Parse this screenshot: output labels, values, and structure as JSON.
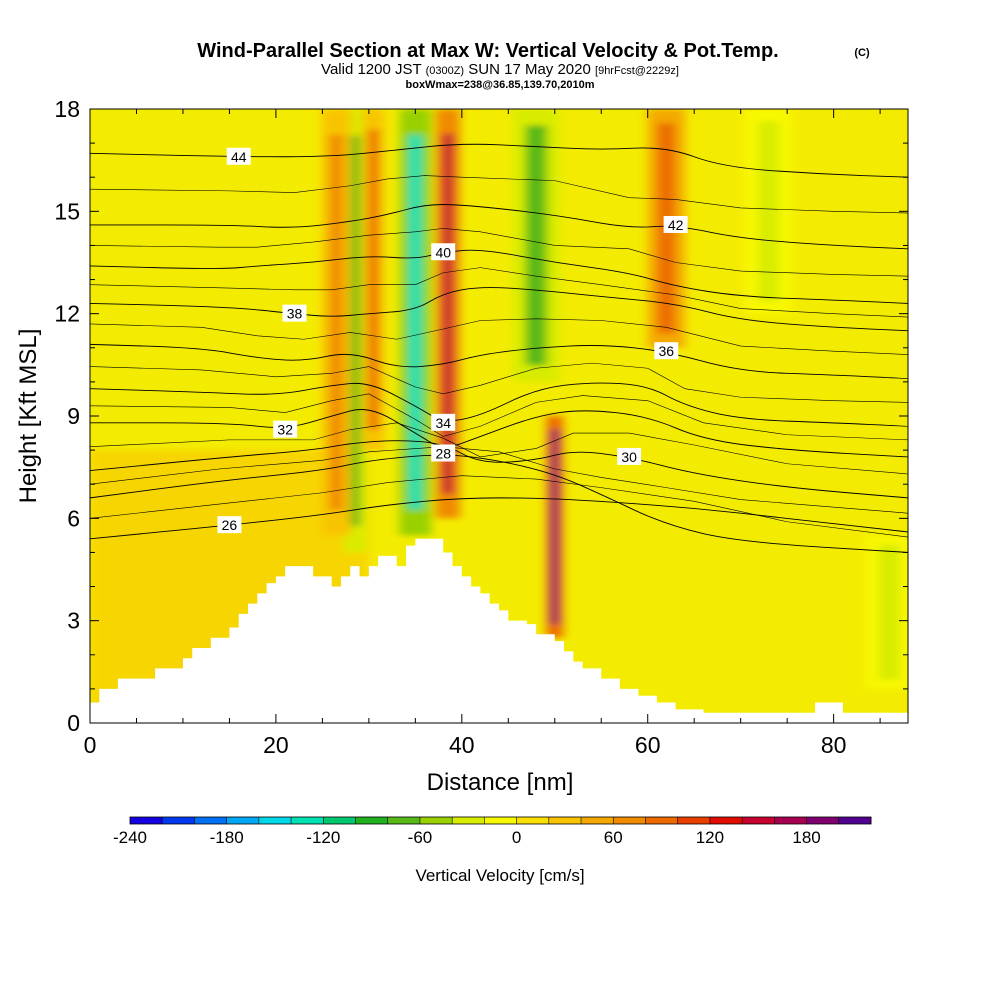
{
  "chart_data": {
    "type": "heatmap",
    "title": "Wind-Parallel Section at Max W: Vertical Velocity & Pot.Temp.",
    "title_mark": "(C)",
    "subtitle": {
      "prefix": "Valid 1200 JST",
      "utc": "(0300Z)",
      "date": "SUN 17 May 2020",
      "forecast": "[9hrFcst@2229z]"
    },
    "subtitle2": "boxWmax=238@36.85,139.70,2010m",
    "xlabel": "Distance [nm]",
    "ylabel": "Height [Kft MSL]",
    "xlim": [
      0,
      88
    ],
    "ylim": [
      0,
      18
    ],
    "x_ticks": [
      "0",
      "20",
      "40",
      "60",
      "80"
    ],
    "y_ticks": [
      "0",
      "3",
      "6",
      "9",
      "12",
      "15",
      "18"
    ],
    "colorbar": {
      "label": "Vertical Velocity [cm/s]",
      "ticks": [
        "-240",
        "-180",
        "-120",
        "-60",
        "0",
        "60",
        "120",
        "180"
      ],
      "range": [
        -240,
        220
      ],
      "colors": [
        "#1400e0",
        "#0038f0",
        "#0070f5",
        "#00a8f5",
        "#00d8ea",
        "#00e0b0",
        "#00c870",
        "#20b020",
        "#58b818",
        "#98d000",
        "#d8ec00",
        "#f8f800",
        "#fae000",
        "#f8c400",
        "#f4a800",
        "#f08a00",
        "#ec6a00",
        "#e83e00",
        "#e00c00",
        "#c80030",
        "#a80050",
        "#800070",
        "#500090"
      ]
    },
    "updraft_bands": [
      {
        "x": 26.5,
        "width": 1.6,
        "ymin": 5.5,
        "ymax": 18,
        "w": 70
      },
      {
        "x": 30.5,
        "width": 1.2,
        "ymin": 8,
        "ymax": 18,
        "w": 80
      },
      {
        "x": 38.5,
        "width": 1.3,
        "ymin": 6,
        "ymax": 18,
        "w": 140
      },
      {
        "x": 50,
        "width": 0.9,
        "ymin": 2.5,
        "ymax": 9,
        "w": 190
      },
      {
        "x": 62,
        "width": 2,
        "ymin": 11,
        "ymax": 18,
        "w": 90
      }
    ],
    "downdraft_bands": [
      {
        "x": 28.5,
        "width": 1.2,
        "ymin": 5,
        "ymax": 18,
        "w": -70
      },
      {
        "x": 35,
        "width": 1.7,
        "ymin": 5.5,
        "ymax": 18,
        "w": -130
      },
      {
        "x": 48,
        "width": 2.5,
        "ymin": 10,
        "ymax": 18,
        "w": -70
      },
      {
        "x": 73,
        "width": 2.5,
        "ymin": 12,
        "ymax": 18,
        "w": -40
      },
      {
        "x": 86,
        "width": 2.5,
        "ymin": 1,
        "ymax": 5.5,
        "w": -40
      }
    ],
    "theta_contours": [
      {
        "value": 26,
        "label": "26",
        "points": [
          [
            0,
            5.4
          ],
          [
            15,
            5.8
          ],
          [
            25,
            6.1
          ],
          [
            32,
            6.4
          ],
          [
            40,
            6.6
          ],
          [
            48,
            6.6
          ],
          [
            55,
            6.5
          ],
          [
            65,
            6.3
          ],
          [
            75,
            6.0
          ],
          [
            88,
            5.6
          ]
        ]
      },
      {
        "value": 28,
        "label": "28",
        "points": [
          [
            0,
            6.6
          ],
          [
            14,
            7.1
          ],
          [
            25,
            7.4
          ],
          [
            30,
            7.7
          ],
          [
            38,
            7.9
          ],
          [
            44,
            7.7
          ],
          [
            50,
            7.3
          ],
          [
            55,
            6.7
          ],
          [
            62,
            5.8
          ],
          [
            70,
            5.3
          ],
          [
            88,
            5.0
          ]
        ]
      },
      {
        "value": 30,
        "label": "30",
        "points": [
          [
            0,
            7.4
          ],
          [
            15,
            7.8
          ],
          [
            24,
            8.0
          ],
          [
            28,
            8.2
          ],
          [
            33,
            8.3
          ],
          [
            38,
            8.2
          ],
          [
            42,
            7.6
          ],
          [
            48,
            7.7
          ],
          [
            52,
            8.0
          ],
          [
            58,
            7.8
          ],
          [
            65,
            7.3
          ],
          [
            75,
            6.9
          ],
          [
            88,
            6.6
          ]
        ]
      },
      {
        "value": 32,
        "label": "32",
        "points": [
          [
            0,
            8.8
          ],
          [
            15,
            8.8
          ],
          [
            21,
            8.6
          ],
          [
            26,
            9.0
          ],
          [
            30,
            9.3
          ],
          [
            35,
            8.5
          ],
          [
            38,
            8.0
          ],
          [
            42,
            8.4
          ],
          [
            48,
            9.0
          ],
          [
            53,
            9.2
          ],
          [
            60,
            9.0
          ],
          [
            66,
            8.3
          ],
          [
            75,
            8.0
          ],
          [
            88,
            7.8
          ]
        ]
      },
      {
        "value": 34,
        "label": "34",
        "points": [
          [
            0,
            9.8
          ],
          [
            12,
            9.7
          ],
          [
            20,
            9.6
          ],
          [
            26,
            9.9
          ],
          [
            30,
            10.0
          ],
          [
            35,
            9.3
          ],
          [
            38,
            8.8
          ],
          [
            42,
            9.0
          ],
          [
            48,
            9.8
          ],
          [
            54,
            10.0
          ],
          [
            60,
            9.9
          ],
          [
            64,
            9.3
          ],
          [
            70,
            8.9
          ],
          [
            80,
            8.8
          ],
          [
            88,
            8.7
          ]
        ]
      },
      {
        "value": 36,
        "label": "36",
        "points": [
          [
            0,
            11.1
          ],
          [
            12,
            11.0
          ],
          [
            18,
            10.7
          ],
          [
            23,
            10.6
          ],
          [
            28,
            10.9
          ],
          [
            33,
            10.4
          ],
          [
            38,
            10.5
          ],
          [
            42,
            10.8
          ],
          [
            48,
            11.0
          ],
          [
            55,
            11.1
          ],
          [
            62,
            10.9
          ],
          [
            70,
            10.3
          ],
          [
            80,
            10.2
          ],
          [
            88,
            10.1
          ]
        ]
      },
      {
        "value": 38,
        "label": "38",
        "points": [
          [
            0,
            12.3
          ],
          [
            15,
            12.2
          ],
          [
            22,
            12.0
          ],
          [
            26,
            11.9
          ],
          [
            30,
            12.0
          ],
          [
            35,
            12.1
          ],
          [
            38,
            12.6
          ],
          [
            42,
            12.8
          ],
          [
            48,
            12.7
          ],
          [
            55,
            12.5
          ],
          [
            63,
            12.3
          ],
          [
            70,
            11.8
          ],
          [
            80,
            11.6
          ],
          [
            88,
            11.5
          ]
        ]
      },
      {
        "value": 40,
        "label": "40",
        "points": [
          [
            0,
            13.4
          ],
          [
            14,
            13.3
          ],
          [
            18,
            13.4
          ],
          [
            24,
            13.5
          ],
          [
            30,
            13.7
          ],
          [
            35,
            13.6
          ],
          [
            38,
            13.8
          ],
          [
            42,
            13.9
          ],
          [
            50,
            13.5
          ],
          [
            58,
            13.2
          ],
          [
            63,
            12.8
          ],
          [
            70,
            12.5
          ],
          [
            80,
            12.4
          ],
          [
            88,
            12.3
          ]
        ]
      },
      {
        "value": 42,
        "label": "42",
        "points": [
          [
            0,
            14.6
          ],
          [
            15,
            14.6
          ],
          [
            22,
            14.5
          ],
          [
            28,
            14.7
          ],
          [
            32,
            14.9
          ],
          [
            36,
            15.2
          ],
          [
            40,
            15.2
          ],
          [
            50,
            14.9
          ],
          [
            58,
            14.5
          ],
          [
            63,
            14.6
          ],
          [
            70,
            14.2
          ],
          [
            80,
            14.0
          ],
          [
            88,
            13.9
          ]
        ]
      },
      {
        "value": 44,
        "label": "44",
        "points": [
          [
            0,
            16.7
          ],
          [
            16,
            16.6
          ],
          [
            26,
            16.6
          ],
          [
            33,
            16.8
          ],
          [
            40,
            17.0
          ],
          [
            48,
            16.9
          ],
          [
            55,
            16.8
          ],
          [
            62,
            16.9
          ],
          [
            68,
            16.3
          ],
          [
            78,
            16.1
          ],
          [
            88,
            16.0
          ]
        ]
      }
    ],
    "terrain_top_kft": [
      [
        0,
        0.6
      ],
      [
        1,
        1.0
      ],
      [
        2,
        1.0
      ],
      [
        3,
        1.3
      ],
      [
        6,
        1.3
      ],
      [
        7,
        1.6
      ],
      [
        9,
        1.6
      ],
      [
        10,
        1.9
      ],
      [
        11,
        2.2
      ],
      [
        13,
        2.5
      ],
      [
        15,
        2.8
      ],
      [
        16,
        3.2
      ],
      [
        17,
        3.5
      ],
      [
        18,
        3.8
      ],
      [
        19,
        4.1
      ],
      [
        20,
        4.3
      ],
      [
        21,
        4.6
      ],
      [
        22,
        4.6
      ],
      [
        23,
        4.6
      ],
      [
        24,
        4.3
      ],
      [
        26,
        4.0
      ],
      [
        27,
        4.3
      ],
      [
        28,
        4.6
      ],
      [
        29,
        4.3
      ],
      [
        30,
        4.6
      ],
      [
        31,
        4.9
      ],
      [
        32,
        4.9
      ],
      [
        33,
        4.6
      ],
      [
        34,
        5.2
      ],
      [
        35,
        5.4
      ],
      [
        37,
        5.4
      ],
      [
        38,
        5.0
      ],
      [
        39,
        4.6
      ],
      [
        40,
        4.3
      ],
      [
        41,
        4.0
      ],
      [
        42,
        3.8
      ],
      [
        43,
        3.5
      ],
      [
        44,
        3.3
      ],
      [
        45,
        3.0
      ],
      [
        47,
        2.9
      ],
      [
        48,
        2.6
      ],
      [
        50,
        2.4
      ],
      [
        51,
        2.1
      ],
      [
        52,
        1.8
      ],
      [
        53,
        1.6
      ],
      [
        55,
        1.3
      ],
      [
        57,
        1.0
      ],
      [
        59,
        0.8
      ],
      [
        61,
        0.6
      ],
      [
        63,
        0.4
      ],
      [
        66,
        0.3
      ],
      [
        77,
        0.3
      ],
      [
        78,
        0.6
      ],
      [
        80,
        0.6
      ],
      [
        81,
        0.3
      ],
      [
        88,
        0.3
      ]
    ]
  }
}
